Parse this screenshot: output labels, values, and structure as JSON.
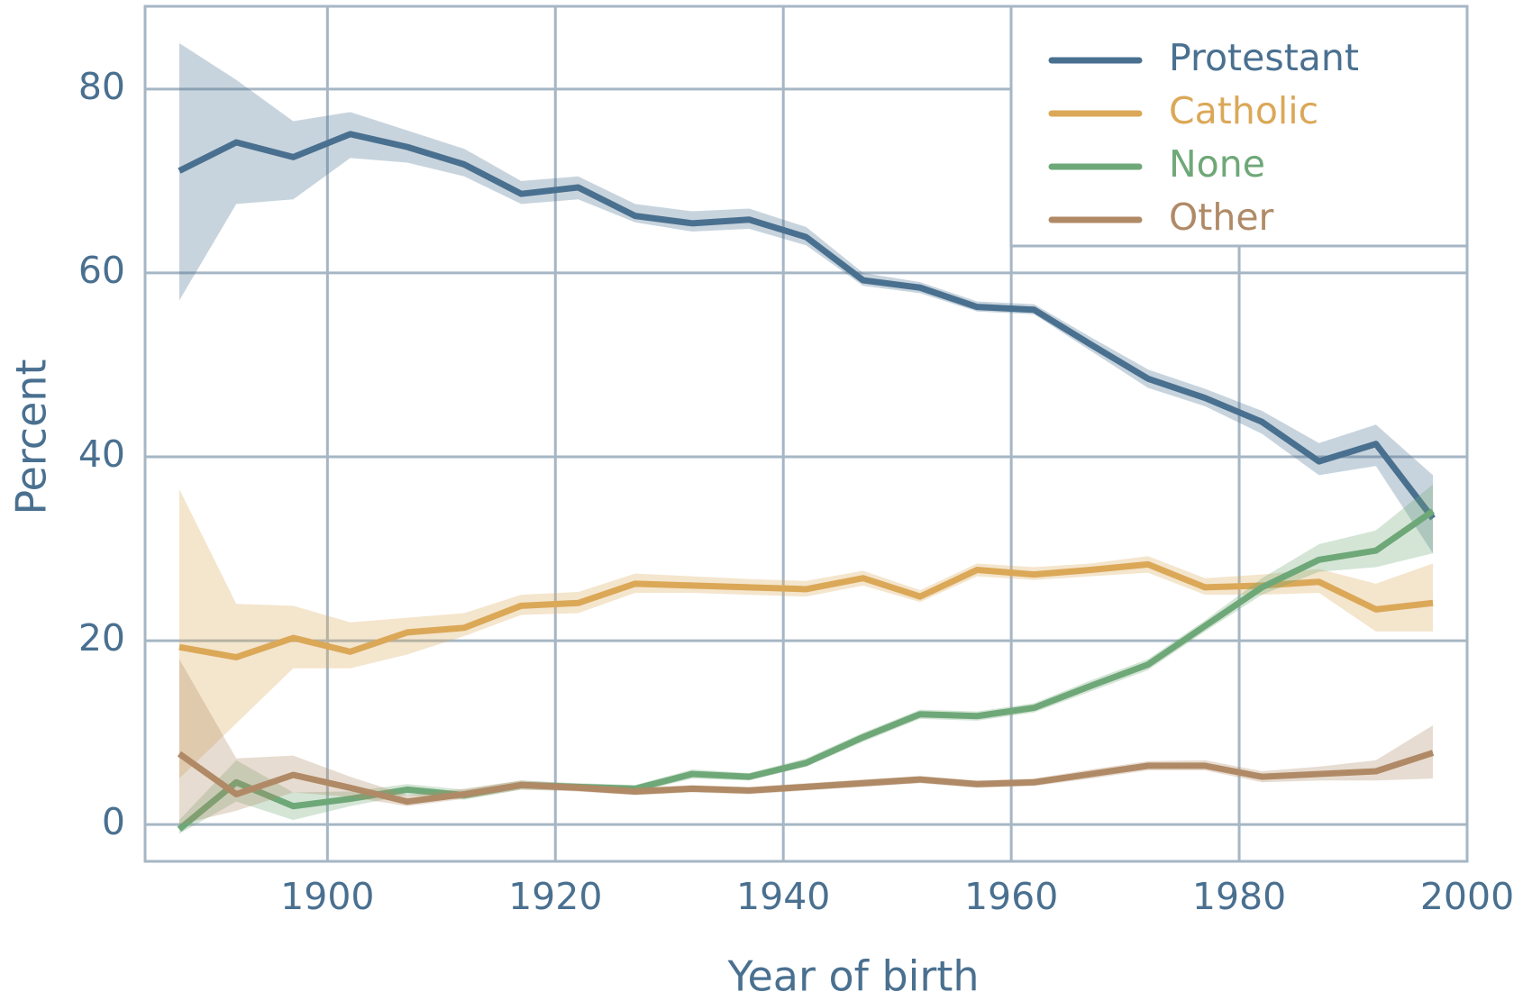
{
  "chart_data": {
    "type": "line",
    "xlabel": "Year of birth",
    "ylabel": "Percent",
    "x": [
      1887,
      1892,
      1897,
      1902,
      1907,
      1912,
      1917,
      1922,
      1927,
      1932,
      1937,
      1942,
      1947,
      1952,
      1957,
      1962,
      1967,
      1972,
      1977,
      1982,
      1987,
      1992,
      1997
    ],
    "series": [
      {
        "name": "Protestant",
        "color": "#4a7090",
        "values": [
          71.1,
          74.2,
          72.6,
          75.1,
          73.7,
          71.8,
          68.6,
          69.3,
          66.2,
          65.4,
          65.8,
          63.9,
          59.2,
          58.4,
          56.3,
          56.0,
          52.2,
          48.5,
          46.4,
          43.8,
          39.5,
          41.4,
          33.3
        ],
        "lower": [
          57,
          67.5,
          68,
          72.5,
          72,
          70.5,
          67.5,
          68,
          65.5,
          64.5,
          64.8,
          63,
          58.6,
          57.8,
          55.8,
          55.5,
          51.5,
          47.5,
          45.5,
          42.5,
          38,
          39,
          29.5
        ],
        "upper": [
          85,
          81,
          76.5,
          77.5,
          75.5,
          73.5,
          70,
          70.5,
          67.5,
          66.7,
          67,
          65,
          60,
          59,
          56.9,
          56.6,
          53,
          49.5,
          47.4,
          45,
          41.5,
          43.5,
          38
        ]
      },
      {
        "name": "Catholic",
        "color": "#dba858",
        "values": [
          19.3,
          18.2,
          20.3,
          18.8,
          20.9,
          21.4,
          23.8,
          24.1,
          26.2,
          26.0,
          25.8,
          25.6,
          26.8,
          24.8,
          27.7,
          27.2,
          27.7,
          28.3,
          25.8,
          26.0,
          26.4,
          23.4,
          24.1
        ],
        "lower": [
          5,
          11,
          17,
          17,
          18.5,
          20.5,
          22.8,
          23,
          25.2,
          25.2,
          25,
          24.8,
          26,
          24.2,
          27,
          26.6,
          27,
          27.4,
          25,
          25,
          25.2,
          21,
          21
        ],
        "upper": [
          36.5,
          24,
          23.8,
          22,
          22.5,
          23,
          25,
          25.3,
          27.3,
          27,
          26.7,
          26.5,
          27.6,
          25.5,
          28.4,
          28,
          28.4,
          29.2,
          26.8,
          27.2,
          27.8,
          26.2,
          28.4
        ]
      },
      {
        "name": "None",
        "color": "#6fa878",
        "values": [
          -0.5,
          4.6,
          2.0,
          2.8,
          3.8,
          3.2,
          4.3,
          4.1,
          3.9,
          5.5,
          5.2,
          6.7,
          9.5,
          12.0,
          11.8,
          12.7,
          15.1,
          17.4,
          21.6,
          25.8,
          28.8,
          29.8,
          34.1
        ],
        "lower": [
          -1,
          2.5,
          0.5,
          2,
          3.2,
          2.7,
          3.8,
          3.7,
          3.5,
          5,
          4.8,
          6.3,
          9,
          11.5,
          11.3,
          12.2,
          14.5,
          16.8,
          21,
          25,
          27.5,
          28,
          29.5
        ],
        "upper": [
          0.5,
          7,
          3.5,
          3.6,
          4.4,
          3.8,
          4.8,
          4.5,
          4.3,
          6,
          5.6,
          7.2,
          10,
          12.5,
          12.3,
          13.2,
          15.7,
          18,
          22.2,
          26.8,
          30.5,
          32,
          37
        ]
      },
      {
        "name": "Other",
        "color": "#b08a66",
        "values": [
          7.7,
          3.3,
          5.4,
          4.0,
          2.5,
          3.3,
          4.3,
          4.0,
          3.6,
          3.9,
          3.7,
          4.1,
          4.5,
          4.9,
          4.4,
          4.6,
          5.5,
          6.4,
          6.4,
          5.2,
          5.5,
          5.8,
          7.8
        ],
        "lower": [
          0,
          1.5,
          3.5,
          3,
          2,
          2.8,
          3.8,
          3.6,
          3.2,
          3.5,
          3.3,
          3.7,
          4.1,
          4.5,
          4,
          4.2,
          5,
          5.9,
          5.9,
          4.6,
          4.8,
          4.8,
          5
        ],
        "upper": [
          18,
          7.2,
          7.5,
          5.2,
          3.2,
          3.9,
          4.8,
          4.4,
          4,
          4.3,
          4.1,
          4.5,
          4.9,
          5.3,
          4.8,
          5,
          6,
          6.9,
          7,
          5.8,
          6.3,
          7,
          10.8
        ]
      }
    ],
    "xlim": [
      1884,
      2000
    ],
    "xticks": [
      1900,
      1920,
      1940,
      1960,
      1980,
      2000
    ],
    "ylim": [
      -4,
      89
    ],
    "yticks": [
      0,
      20,
      40,
      60,
      80
    ],
    "grid": true,
    "legend": "upper right"
  }
}
